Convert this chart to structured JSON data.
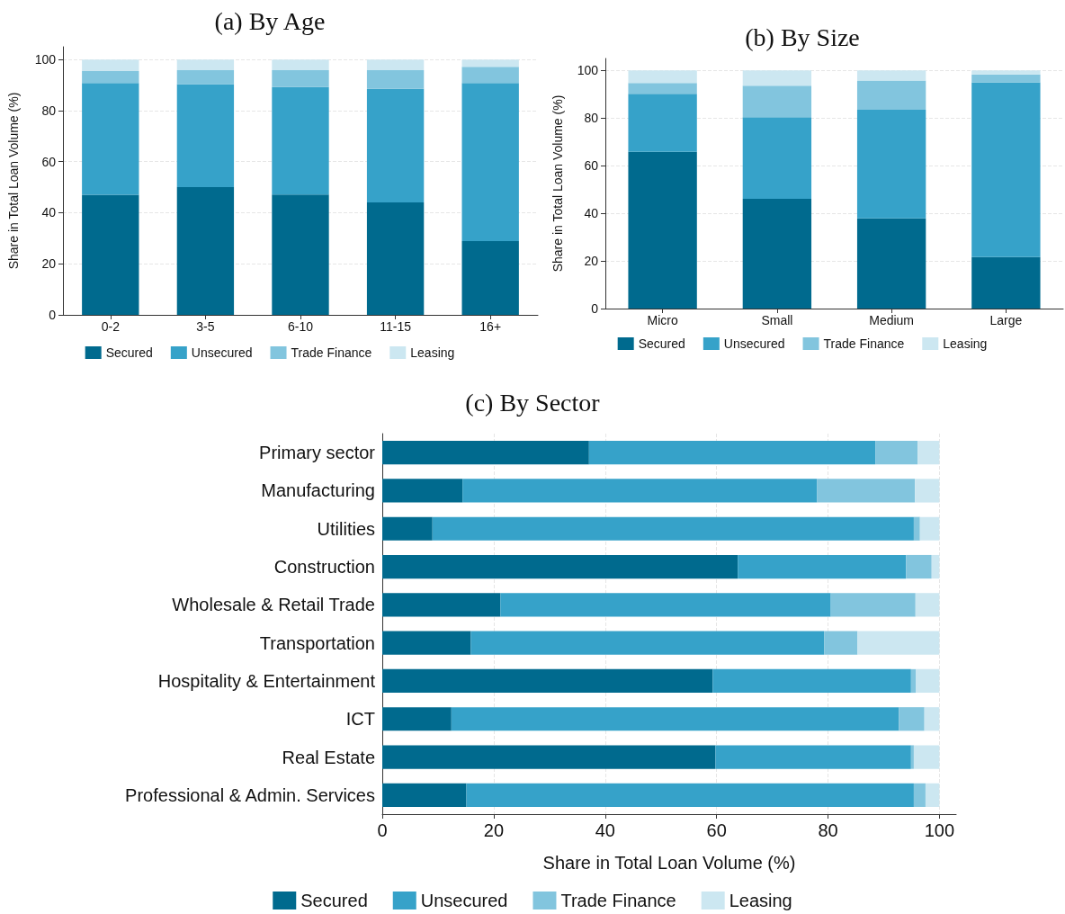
{
  "chart_data": [
    {
      "type": "bar",
      "title": "(a) By Age",
      "categories": [
        "0-2",
        "3-5",
        "6-10",
        "11-15",
        "16+"
      ],
      "stacked": true,
      "ylabel": "Share in Total Loan Volume (%)",
      "ylim": [
        0,
        105
      ],
      "yticks": [
        0,
        20,
        40,
        60,
        80,
        100
      ],
      "grid": "y",
      "legend": "bottom",
      "series": [
        {
          "name": "Secured",
          "color": "#006a8e",
          "values": [
            47.0,
            50.0,
            47.1,
            44.0,
            28.9
          ]
        },
        {
          "name": "Unsecured",
          "color": "#36a2c9",
          "values": [
            43.8,
            40.4,
            42.1,
            44.5,
            61.9
          ]
        },
        {
          "name": "Trade Finance",
          "color": "#82c5de",
          "values": [
            4.7,
            5.4,
            6.6,
            7.3,
            6.4
          ]
        },
        {
          "name": "Leasing",
          "color": "#cce7f1",
          "values": [
            4.5,
            4.2,
            4.2,
            4.2,
            2.8
          ]
        }
      ]
    },
    {
      "type": "bar",
      "title": "(b) By Size",
      "categories": [
        "Micro",
        "Small",
        "Medium",
        "Large"
      ],
      "stacked": true,
      "ylabel": "Share in Total Loan Volume (%)",
      "ylim": [
        0,
        105
      ],
      "yticks": [
        0,
        20,
        40,
        60,
        80,
        100
      ],
      "grid": "y",
      "legend": "bottom",
      "series": [
        {
          "name": "Secured",
          "color": "#006a8e",
          "values": [
            65.8,
            46.1,
            37.9,
            21.6
          ]
        },
        {
          "name": "Unsecured",
          "color": "#36a2c9",
          "values": [
            24.4,
            34.3,
            45.6,
            73.4
          ]
        },
        {
          "name": "Trade Finance",
          "color": "#82c5de",
          "values": [
            4.5,
            13.2,
            12.2,
            3.3
          ]
        },
        {
          "name": "Leasing",
          "color": "#cce7f1",
          "values": [
            5.3,
            6.4,
            4.3,
            1.7
          ]
        }
      ]
    },
    {
      "type": "bar",
      "title": "(c) By Sector",
      "orientation": "horizontal",
      "categories": [
        "Primary sector",
        "Manufacturing",
        "Utilities",
        "Construction",
        "Wholesale & Retail Trade",
        "Transportation",
        "Hospitality & Entertainment",
        "ICT",
        "Real Estate",
        "Professional & Admin. Services"
      ],
      "stacked": true,
      "xlabel": "Share in Total Loan Volume (%)",
      "xlim": [
        0,
        103
      ],
      "xticks": [
        0,
        20,
        40,
        60,
        80,
        100
      ],
      "grid": "x",
      "legend": "bottom",
      "series": [
        {
          "name": "Secured",
          "color": "#006a8e",
          "values": [
            37.1,
            14.4,
            9.0,
            63.8,
            21.2,
            15.9,
            59.3,
            12.4,
            59.8,
            15.1
          ]
        },
        {
          "name": "Unsecured",
          "color": "#36a2c9",
          "values": [
            51.4,
            63.6,
            86.4,
            30.2,
            59.3,
            63.4,
            35.6,
            80.3,
            35.1,
            80.3
          ]
        },
        {
          "name": "Trade Finance",
          "color": "#82c5de",
          "values": [
            7.6,
            17.6,
            1.1,
            4.6,
            15.2,
            6.0,
            0.9,
            4.6,
            0.5,
            2.1
          ]
        },
        {
          "name": "Leasing",
          "color": "#cce7f1",
          "values": [
            3.9,
            4.4,
            3.5,
            1.4,
            4.3,
            14.7,
            4.2,
            2.7,
            4.6,
            2.5
          ]
        }
      ]
    }
  ]
}
